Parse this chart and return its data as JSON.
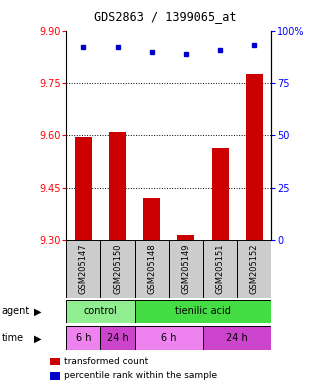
{
  "title": "GDS2863 / 1399065_at",
  "samples": [
    "GSM205147",
    "GSM205150",
    "GSM205148",
    "GSM205149",
    "GSM205151",
    "GSM205152"
  ],
  "bar_values": [
    9.595,
    9.61,
    9.42,
    9.315,
    9.565,
    9.775
  ],
  "dot_values": [
    92,
    92,
    90,
    89,
    91,
    93
  ],
  "bar_color": "#cc0000",
  "dot_color": "#0000cc",
  "ylim_left": [
    9.3,
    9.9
  ],
  "ylim_right": [
    0,
    100
  ],
  "yticks_left": [
    9.3,
    9.45,
    9.6,
    9.75,
    9.9
  ],
  "yticks_right": [
    0,
    25,
    50,
    75,
    100
  ],
  "ytick_right_labels": [
    "0",
    "25",
    "50",
    "75",
    "100%"
  ],
  "hlines": [
    9.45,
    9.6,
    9.75
  ],
  "agent_labels": [
    {
      "label": "control",
      "start": 0,
      "end": 2,
      "color": "#90ee90"
    },
    {
      "label": "tienilic acid",
      "start": 2,
      "end": 6,
      "color": "#44dd44"
    }
  ],
  "time_labels": [
    {
      "label": "6 h",
      "start": 0,
      "end": 1,
      "color": "#ee82ee"
    },
    {
      "label": "24 h",
      "start": 1,
      "end": 2,
      "color": "#cc44cc"
    },
    {
      "label": "6 h",
      "start": 2,
      "end": 4,
      "color": "#ee82ee"
    },
    {
      "label": "24 h",
      "start": 4,
      "end": 6,
      "color": "#cc44cc"
    }
  ],
  "legend_bar_label": "transformed count",
  "legend_dot_label": "percentile rank within the sample",
  "label_agent": "agent",
  "label_time": "time",
  "sample_box_color": "#cccccc",
  "bar_width": 0.5,
  "title_fontsize": 8.5,
  "tick_fontsize": 7,
  "sample_fontsize": 6,
  "row_fontsize": 7,
  "legend_fontsize": 6.5
}
